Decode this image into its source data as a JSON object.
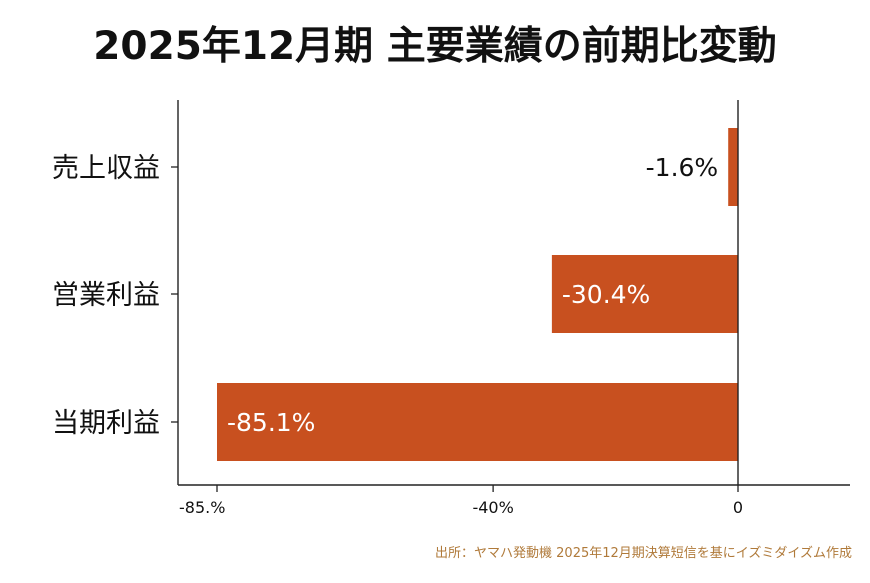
{
  "title": "2025年12月期 主要業績の前期比変動",
  "source": "出所：ヤマハ発動機 2025年12月期決算短信を基にイズミダイズム作成",
  "colors": {
    "bar": "#c8501f",
    "axis": "#222222",
    "text": "#111111",
    "label_inside": "#ffffff",
    "label_outside": "#111111",
    "source": "#b07a3a"
  },
  "chart_data": {
    "type": "bar",
    "orientation": "horizontal",
    "categories": [
      "売上収益",
      "営業利益",
      "当期利益"
    ],
    "values": [
      -1.6,
      -30.4,
      -85.1
    ],
    "data_labels": [
      "-1.6%",
      "-30.4%",
      "-85.1%"
    ],
    "x_ticks": [
      {
        "value": -85.1,
        "label": "-85.%"
      },
      {
        "value": -40,
        "label": "-40%"
      },
      {
        "value": 0,
        "label": "0"
      }
    ],
    "xlim": [
      -85.1,
      0
    ],
    "grid": false,
    "legend": "none"
  }
}
